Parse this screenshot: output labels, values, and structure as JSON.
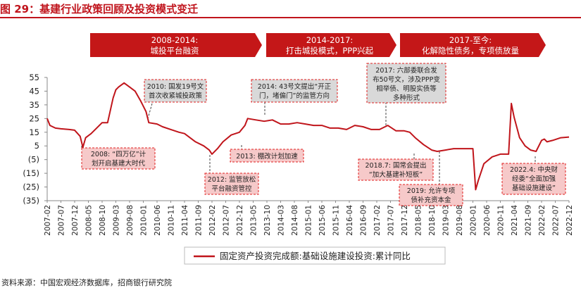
{
  "title": "图 29：基建行业政策回顾及投资模式变迁",
  "source": "资料来源：中国宏观经济数据库，招商银行研究院",
  "colors": {
    "line": "#c0151b",
    "banner": "#c41718",
    "annotation_fill": "#d9d9d9",
    "annotation_red_fill": "#f6c9c9",
    "annotation_border": "#e02020"
  },
  "banners": [
    {
      "line1": "2008-2014:",
      "line2": "城投平台融资"
    },
    {
      "line1": "2014-2017:",
      "line2": "打击城投模式，PPP兴起"
    },
    {
      "line1": "2017-至今:",
      "line2": "化解隐性债务，专项债放量"
    }
  ],
  "annotations": [
    {
      "id": "a2008",
      "lines": [
        "2008: “四万亿”计",
        "划开启基建大时代"
      ],
      "style": "red"
    },
    {
      "id": "a2010",
      "lines": [
        "2010: 国发19号文",
        "首次收紧城投政策"
      ],
      "style": "gray"
    },
    {
      "id": "a2012",
      "lines": [
        "2012: 监管放松",
        "平台融资管控"
      ],
      "style": "red"
    },
    {
      "id": "a2013",
      "lines": [
        "2013: 棚改计划加速"
      ],
      "style": "red"
    },
    {
      "id": "a2014",
      "lines": [
        "2014: 43号文提出“开正",
        "门，堵偏门”的监管方向"
      ],
      "style": "gray"
    },
    {
      "id": "a2017",
      "lines": [
        "2017: 六部委联合发",
        "布50号文，涉及PPP变",
        "相举债、明股实债等",
        "多种形式"
      ],
      "style": "gray"
    },
    {
      "id": "a2018",
      "lines": [
        "2018.7: 国常会提出",
        "“加大基建补短板”"
      ],
      "style": "red"
    },
    {
      "id": "a2019",
      "lines": [
        "2019: 允许专项",
        "债补充资本金"
      ],
      "style": "red"
    },
    {
      "id": "a2022",
      "lines": [
        "2022.4: 中央财",
        "经委“全面加强",
        "基础设施建设”"
      ],
      "style": "red"
    }
  ],
  "chart_data": {
    "type": "line",
    "title": "图 29：基建行业政策回顾及投资模式变迁",
    "xlabel": "",
    "ylabel": "",
    "ylim": [
      -35,
      55
    ],
    "y_ticks": [
      55,
      45,
      35,
      25,
      15,
      5,
      -5,
      -15,
      -25,
      -35
    ],
    "y_tick_labels": [
      "55",
      "45",
      "35",
      "25",
      "15",
      "5",
      "(5)",
      "(15)",
      "(25)",
      "(35)"
    ],
    "x_tick_labels": [
      "2007-02",
      "2007-07",
      "2007-12",
      "2008-05",
      "2008-10",
      "2009-03",
      "2009-08",
      "2010-01",
      "2010-06",
      "2010-11",
      "2011-04",
      "2011-09",
      "2012-02",
      "2012-07",
      "2012-12",
      "2013-05",
      "2013-10",
      "2014-03",
      "2014-08",
      "2015-01",
      "2015-06",
      "2015-11",
      "2016-04",
      "2016-09",
      "2017-02",
      "2017-07",
      "2017-12",
      "2018-05",
      "2018-10",
      "2019-03",
      "2019-08",
      "2020-01",
      "2020-06",
      "2020-11",
      "2021-04",
      "2021-09",
      "2022-02",
      "2022-07",
      "2022-12"
    ],
    "legend": {
      "position": "bottom"
    },
    "grid": false,
    "series": [
      {
        "name": "固定资产投资完成额:基础设施建设投资:累计同比",
        "points": [
          [
            "2007-02",
            25
          ],
          [
            "2007-03",
            20
          ],
          [
            "2007-05",
            18
          ],
          [
            "2007-07",
            17.5
          ],
          [
            "2007-10",
            17
          ],
          [
            "2007-12",
            16.5
          ],
          [
            "2008-02",
            12
          ],
          [
            "2008-03",
            4
          ],
          [
            "2008-04",
            11
          ],
          [
            "2008-06",
            14
          ],
          [
            "2008-08",
            18
          ],
          [
            "2008-10",
            22
          ],
          [
            "2008-12",
            22
          ],
          [
            "2009-02",
            40
          ],
          [
            "2009-03",
            46
          ],
          [
            "2009-04",
            48
          ],
          [
            "2009-06",
            51
          ],
          [
            "2009-08",
            48
          ],
          [
            "2009-10",
            45
          ],
          [
            "2009-12",
            38
          ],
          [
            "2010-02",
            30
          ],
          [
            "2010-03",
            22
          ],
          [
            "2010-06",
            21
          ],
          [
            "2010-08",
            19
          ],
          [
            "2010-11",
            17
          ],
          [
            "2011-02",
            15
          ],
          [
            "2011-04",
            14
          ],
          [
            "2011-06",
            11
          ],
          [
            "2011-08",
            8
          ],
          [
            "2011-11",
            5
          ],
          [
            "2012-01",
            2
          ],
          [
            "2012-02",
            -1
          ],
          [
            "2012-04",
            3
          ],
          [
            "2012-06",
            8
          ],
          [
            "2012-09",
            13
          ],
          [
            "2012-12",
            15
          ],
          [
            "2013-02",
            20
          ],
          [
            "2013-03",
            25
          ],
          [
            "2013-06",
            24
          ],
          [
            "2013-09",
            23
          ],
          [
            "2013-12",
            24
          ],
          [
            "2014-03",
            21
          ],
          [
            "2014-06",
            21
          ],
          [
            "2014-09",
            22
          ],
          [
            "2014-12",
            21
          ],
          [
            "2015-03",
            20
          ],
          [
            "2015-06",
            20
          ],
          [
            "2015-09",
            18
          ],
          [
            "2015-12",
            18
          ],
          [
            "2016-03",
            17
          ],
          [
            "2016-06",
            20
          ],
          [
            "2016-09",
            19
          ],
          [
            "2016-12",
            17
          ],
          [
            "2017-03",
            17
          ],
          [
            "2017-06",
            20
          ],
          [
            "2017-09",
            16
          ],
          [
            "2017-12",
            16
          ],
          [
            "2018-02",
            15
          ],
          [
            "2018-04",
            11
          ],
          [
            "2018-07",
            6
          ],
          [
            "2018-10",
            2
          ],
          [
            "2018-12",
            1
          ],
          [
            "2019-03",
            2
          ],
          [
            "2019-06",
            3
          ],
          [
            "2019-09",
            3
          ],
          [
            "2019-12",
            3
          ],
          [
            "2020-01",
            3
          ],
          [
            "2020-02",
            -27
          ],
          [
            "2020-03",
            -20
          ],
          [
            "2020-05",
            -8
          ],
          [
            "2020-08",
            -3
          ],
          [
            "2020-11",
            -1
          ],
          [
            "2021-02",
            -1
          ],
          [
            "2021-03",
            36
          ],
          [
            "2021-04",
            26
          ],
          [
            "2021-06",
            11
          ],
          [
            "2021-08",
            5
          ],
          [
            "2021-10",
            2
          ],
          [
            "2021-12",
            1
          ],
          [
            "2022-02",
            9
          ],
          [
            "2022-03",
            10
          ],
          [
            "2022-04",
            8
          ],
          [
            "2022-06",
            9
          ],
          [
            "2022-09",
            11
          ],
          [
            "2022-12",
            11.5
          ]
        ]
      }
    ]
  }
}
